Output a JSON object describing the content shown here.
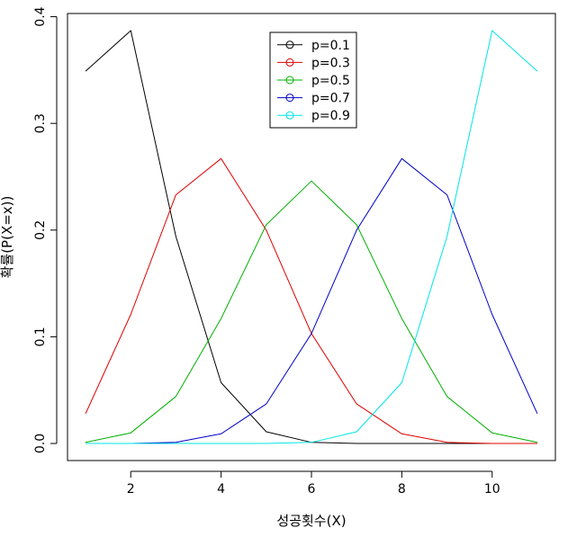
{
  "chart_data": {
    "type": "line",
    "title": "",
    "xlabel": "성공횟수(X)",
    "ylabel": "확률(P(X=x))",
    "x": [
      1,
      2,
      3,
      4,
      5,
      6,
      7,
      8,
      9,
      10,
      11
    ],
    "xlim": [
      0.6,
      11.4
    ],
    "ylim": [
      -0.016,
      0.403
    ],
    "xticks": [
      "2",
      "4",
      "6",
      "8",
      "10"
    ],
    "yticks": [
      "0.0",
      "0.1",
      "0.2",
      "0.3",
      "0.4"
    ],
    "grid": false,
    "legend_position": "top-center",
    "series": [
      {
        "name": "p=0.1",
        "color": "#000000",
        "values": [
          0.349,
          0.387,
          0.194,
          0.057,
          0.011,
          0.001,
          0.0,
          0.0,
          0.0,
          0.0,
          0.0
        ]
      },
      {
        "name": "p=0.3",
        "color": "#df0000",
        "values": [
          0.028,
          0.121,
          0.233,
          0.267,
          0.2,
          0.103,
          0.037,
          0.009,
          0.001,
          0.0,
          0.0
        ]
      },
      {
        "name": "p=0.5",
        "color": "#00b000",
        "values": [
          0.001,
          0.01,
          0.044,
          0.117,
          0.205,
          0.246,
          0.205,
          0.117,
          0.044,
          0.01,
          0.001
        ]
      },
      {
        "name": "p=0.7",
        "color": "#0000c8",
        "values": [
          0.0,
          0.0,
          0.001,
          0.009,
          0.037,
          0.103,
          0.2,
          0.267,
          0.233,
          0.121,
          0.028
        ]
      },
      {
        "name": "p=0.9",
        "color": "#00e5e5",
        "values": [
          0.0,
          0.0,
          0.0,
          0.0,
          0.0,
          0.001,
          0.011,
          0.057,
          0.194,
          0.387,
          0.349
        ]
      }
    ]
  }
}
